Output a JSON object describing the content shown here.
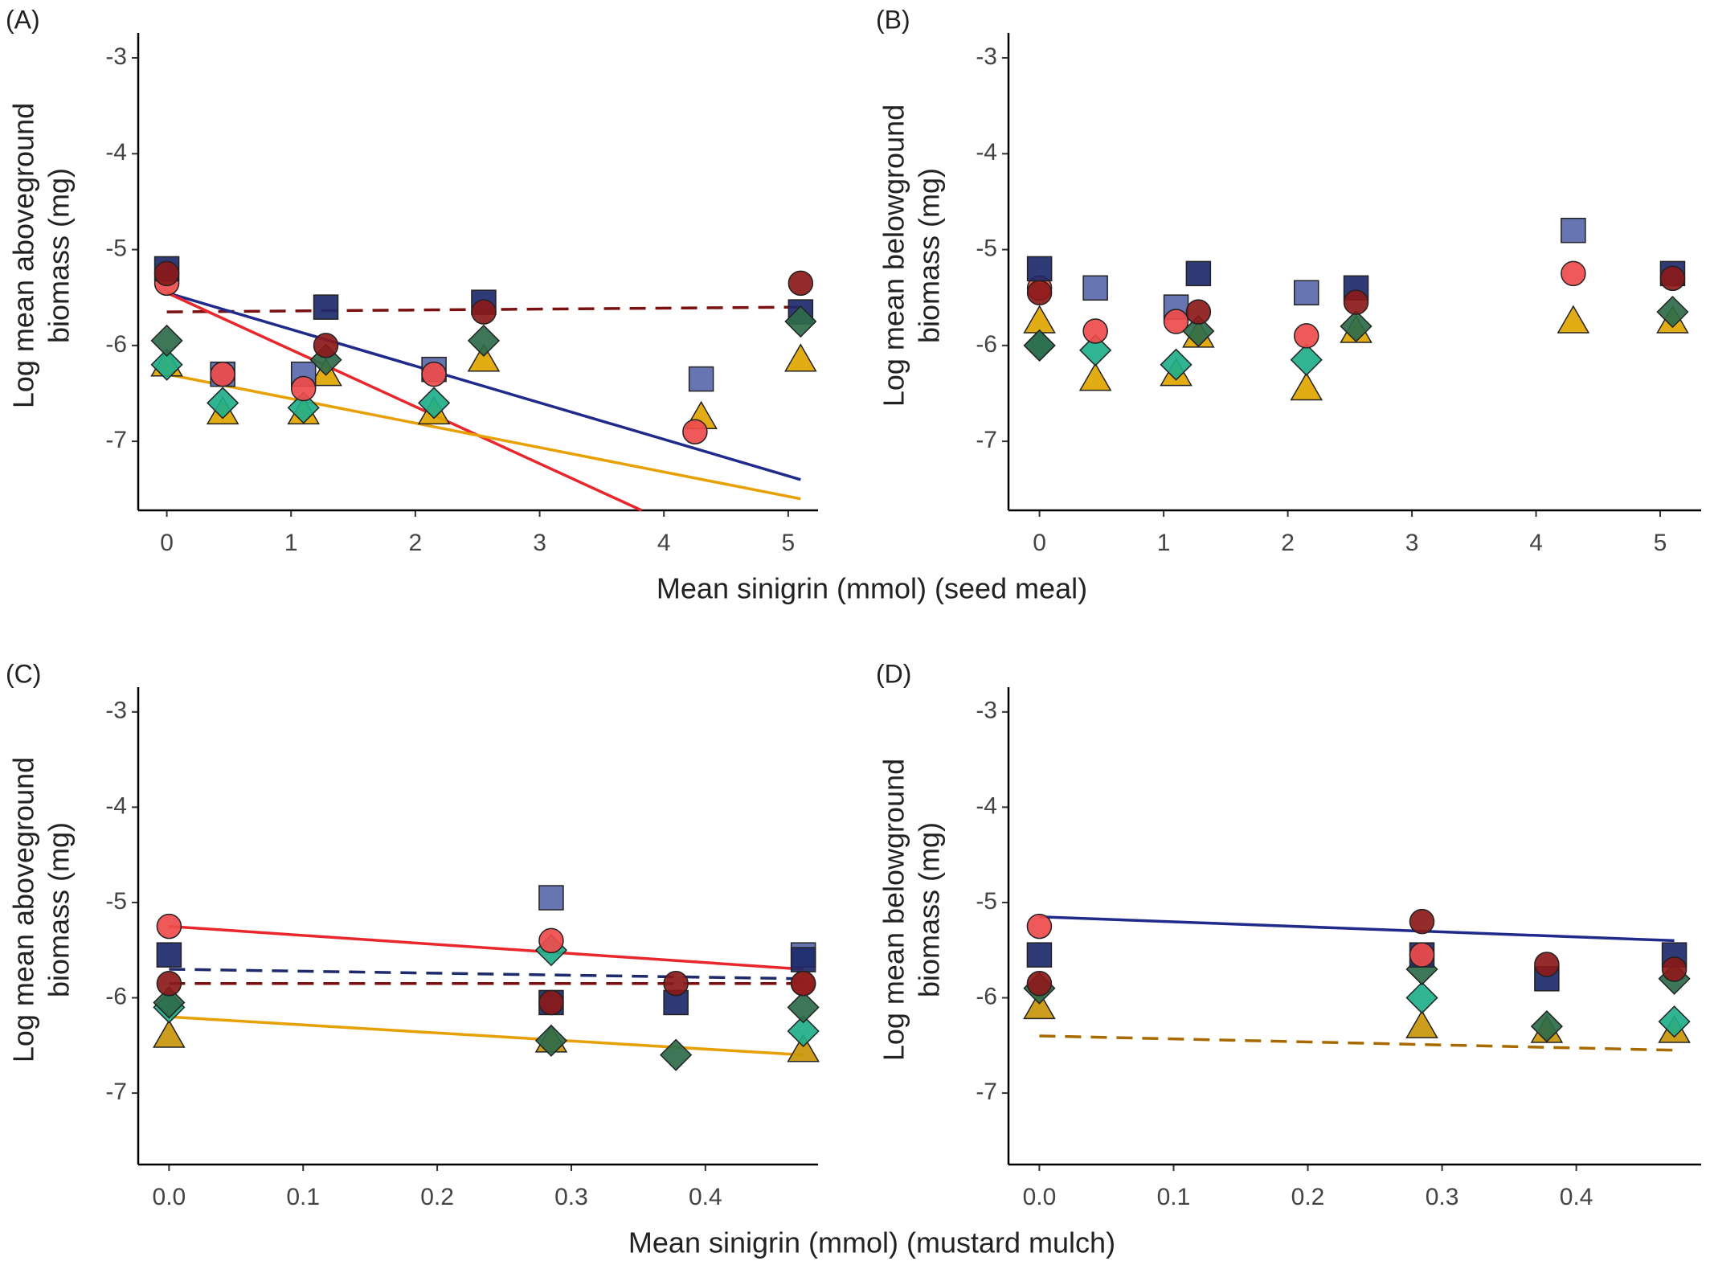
{
  "chart_data": [
    {
      "type": "scatter",
      "panel": "(A)",
      "ylabel": [
        "Log mean aboveground",
        "biomass (mg)"
      ],
      "xlabel": "Mean sinigrin (mmol) (seed meal)",
      "xlim": [
        -0.23,
        5.24
      ],
      "ylim": [
        -7.72,
        -2.74
      ],
      "xticks": [
        0,
        1,
        2,
        3,
        4,
        5
      ],
      "yticks": [
        -3,
        -4,
        -5,
        -6,
        -7
      ],
      "fits": [
        {
          "color": "#7a1010",
          "dash": true,
          "x": [
            0,
            5.1
          ],
          "values": [
            -5.65,
            -5.6
          ]
        },
        {
          "color": "#1f2a8a",
          "dash": false,
          "x": [
            0,
            5.1
          ],
          "values": [
            -5.45,
            -7.4
          ]
        },
        {
          "color": "#e8262b",
          "dash": false,
          "x": [
            0,
            3.82
          ],
          "values": [
            -5.45,
            -7.72
          ]
        },
        {
          "color": "#e8a000",
          "dash": false,
          "x": [
            0,
            5.1
          ],
          "values": [
            -6.3,
            -7.6
          ]
        }
      ],
      "series": [
        {
          "color": "#e0a500",
          "marker": "triangle",
          "x": [
            0,
            0.45,
            1.1,
            1.28,
            2.15,
            2.55,
            4.3,
            5.1
          ],
          "values": [
            -6.2,
            -6.7,
            -6.7,
            -6.3,
            -6.7,
            -6.15,
            -6.75,
            -6.15
          ]
        },
        {
          "color": "#5a6aad",
          "marker": "square",
          "x": [
            0.45,
            1.1,
            2.15,
            4.3
          ],
          "values": [
            -6.3,
            -6.3,
            -6.25,
            -6.35
          ]
        },
        {
          "color": "#1fae8a",
          "marker": "diamond",
          "x": [
            0,
            0.45,
            1.1,
            2.15
          ],
          "values": [
            -6.2,
            -6.6,
            -6.65,
            -6.6
          ]
        },
        {
          "color": "#ee4b4b",
          "marker": "circle",
          "x": [
            0,
            0.45,
            1.1,
            2.15,
            4.25
          ],
          "values": [
            -5.35,
            -6.3,
            -6.45,
            -6.3,
            -6.9
          ]
        },
        {
          "color": "#1d2a6b",
          "marker": "square",
          "x": [
            0,
            1.28,
            2.55,
            5.1
          ],
          "values": [
            -5.2,
            -5.6,
            -5.55,
            -5.65
          ]
        },
        {
          "color": "#2e6b4a",
          "marker": "diamond",
          "x": [
            0,
            1.28,
            2.55,
            5.1
          ],
          "values": [
            -5.95,
            -6.15,
            -5.95,
            -5.75
          ]
        },
        {
          "color": "#8b1a1a",
          "marker": "circle",
          "x": [
            0,
            1.28,
            2.55,
            5.1
          ],
          "values": [
            -5.25,
            -6.0,
            -5.65,
            -5.35
          ]
        }
      ]
    },
    {
      "type": "scatter",
      "panel": "(B)",
      "ylabel": [
        "Log mean belowground",
        "biomass (mg)"
      ],
      "xlim": [
        -0.25,
        5.33
      ],
      "ylim": [
        -7.72,
        -2.74
      ],
      "xticks": [
        0,
        1,
        2,
        3,
        4,
        5
      ],
      "yticks": [
        -3,
        -4,
        -5,
        -6,
        -7
      ],
      "fits": [],
      "series": [
        {
          "color": "#e0a500",
          "marker": "triangle",
          "x": [
            0,
            0.45,
            1.1,
            1.28,
            2.15,
            2.55,
            4.3,
            5.1
          ],
          "values": [
            -5.75,
            -6.35,
            -6.3,
            -5.9,
            -6.45,
            -5.85,
            -5.75,
            -5.75
          ]
        },
        {
          "color": "#5a6aad",
          "marker": "square",
          "x": [
            0.45,
            1.1,
            2.15,
            4.3
          ],
          "values": [
            -5.4,
            -5.6,
            -5.45,
            -4.8
          ]
        },
        {
          "color": "#1fae8a",
          "marker": "diamond",
          "x": [
            0,
            0.45,
            1.1,
            2.15
          ],
          "values": [
            -6.0,
            -6.05,
            -6.2,
            -6.15
          ]
        },
        {
          "color": "#ee4b4b",
          "marker": "circle",
          "x": [
            0,
            0.45,
            1.1,
            2.15,
            4.3
          ],
          "values": [
            -5.4,
            -5.85,
            -5.75,
            -5.9,
            -5.25
          ]
        },
        {
          "color": "#1d2a6b",
          "marker": "square",
          "x": [
            0,
            1.28,
            2.55,
            5.1
          ],
          "values": [
            -5.2,
            -5.25,
            -5.4,
            -5.25
          ]
        },
        {
          "color": "#2e6b4a",
          "marker": "diamond",
          "x": [
            0,
            1.28,
            2.55,
            5.1
          ],
          "values": [
            -6.0,
            -5.85,
            -5.8,
            -5.65
          ]
        },
        {
          "color": "#8b1a1a",
          "marker": "circle",
          "x": [
            0,
            1.28,
            2.55,
            5.1
          ],
          "values": [
            -5.45,
            -5.65,
            -5.55,
            -5.3
          ]
        }
      ]
    },
    {
      "type": "scatter",
      "panel": "(C)",
      "ylabel": [
        "Log mean aboveground",
        "biomass (mg)"
      ],
      "xlabel": "Mean sinigrin (mmol) (mustard mulch)",
      "xlim": [
        -0.023,
        0.484
      ],
      "ylim": [
        -7.75,
        -2.74
      ],
      "xticks": [
        {
          "value": 0,
          "label": "0.0"
        },
        0.1,
        0.2,
        0.3,
        0.4
      ],
      "yticks": [
        -3,
        -4,
        -5,
        -6,
        -7
      ],
      "fits": [
        {
          "color": "#e8262b",
          "dash": false,
          "x": [
            0,
            0.473
          ],
          "values": [
            -5.25,
            -5.7
          ]
        },
        {
          "color": "#1d2a6b",
          "dash": true,
          "x": [
            0,
            0.473
          ],
          "values": [
            -5.7,
            -5.8
          ]
        },
        {
          "color": "#7a1010",
          "dash": true,
          "x": [
            0,
            0.473
          ],
          "values": [
            -5.85,
            -5.85
          ]
        },
        {
          "color": "#e8a000",
          "dash": false,
          "x": [
            0,
            0.473
          ],
          "values": [
            -6.2,
            -6.6
          ]
        }
      ],
      "series": [
        {
          "color": "#5a6aad",
          "marker": "square",
          "x": [
            0.285,
            0.473
          ],
          "values": [
            -4.95,
            -5.55
          ]
        },
        {
          "color": "#1d2a6b",
          "marker": "square",
          "x": [
            0,
            0.285,
            0.378,
            0.473
          ],
          "values": [
            -5.55,
            -6.05,
            -6.05,
            -5.6
          ]
        },
        {
          "color": "#c9960a",
          "marker": "triangle",
          "x": [
            0,
            0.285,
            0.473
          ],
          "values": [
            -6.4,
            -6.45,
            -6.55
          ]
        },
        {
          "color": "#1fae8a",
          "marker": "diamond",
          "x": [
            0,
            0.285,
            0.473
          ],
          "values": [
            -6.1,
            -5.5,
            -6.35
          ]
        },
        {
          "color": "#2e6b4a",
          "marker": "diamond",
          "x": [
            0,
            0.285,
            0.378,
            0.473
          ],
          "values": [
            -6.05,
            -6.45,
            -6.6,
            -6.1
          ]
        },
        {
          "color": "#ee4b4b",
          "marker": "circle",
          "x": [
            0,
            0.285,
            0.473
          ],
          "values": [
            -5.25,
            -5.4,
            -5.85
          ]
        },
        {
          "color": "#8b1a1a",
          "marker": "circle",
          "x": [
            0,
            0.285,
            0.378,
            0.473
          ],
          "values": [
            -5.85,
            -6.05,
            -5.85,
            -5.85
          ]
        }
      ]
    },
    {
      "type": "scatter",
      "panel": "(D)",
      "ylabel": [
        "Log mean belowground",
        "biomass (mg)"
      ],
      "xlim": [
        -0.023,
        0.493
      ],
      "ylim": [
        -7.75,
        -2.74
      ],
      "xticks": [
        {
          "value": 0,
          "label": "0.0"
        },
        0.1,
        0.2,
        0.3,
        0.4
      ],
      "yticks": [
        -3,
        -4,
        -5,
        -6,
        -7
      ],
      "fits": [
        {
          "color": "#1f2a8a",
          "dash": false,
          "x": [
            0,
            0.473
          ],
          "values": [
            -5.15,
            -5.4
          ]
        },
        {
          "color": "#a86a00",
          "dash": true,
          "x": [
            0,
            0.473
          ],
          "values": [
            -6.4,
            -6.55
          ]
        }
      ],
      "series": [
        {
          "color": "#c9960a",
          "marker": "triangle",
          "x": [
            0,
            0.285,
            0.378,
            0.473
          ],
          "values": [
            -6.1,
            -6.3,
            -6.35,
            -6.35
          ]
        },
        {
          "color": "#1fae8a",
          "marker": "diamond",
          "x": [
            0.285,
            0.473
          ],
          "values": [
            -6.0,
            -6.25
          ]
        },
        {
          "color": "#2e6b4a",
          "marker": "diamond",
          "x": [
            0,
            0.285,
            0.378,
            0.473
          ],
          "values": [
            -5.9,
            -5.7,
            -6.3,
            -5.8
          ]
        },
        {
          "color": "#1d2a6b",
          "marker": "square",
          "x": [
            0,
            0.285,
            0.378,
            0.473
          ],
          "values": [
            -5.55,
            -5.55,
            -5.8,
            -5.55
          ]
        },
        {
          "color": "#ee4b4b",
          "marker": "circle",
          "x": [
            0,
            0.285
          ],
          "values": [
            -5.25,
            -5.55
          ]
        },
        {
          "color": "#8b1a1a",
          "marker": "circle",
          "x": [
            0,
            0.285,
            0.378,
            0.473
          ],
          "values": [
            -5.85,
            -5.2,
            -5.65,
            -5.7
          ]
        }
      ]
    }
  ]
}
